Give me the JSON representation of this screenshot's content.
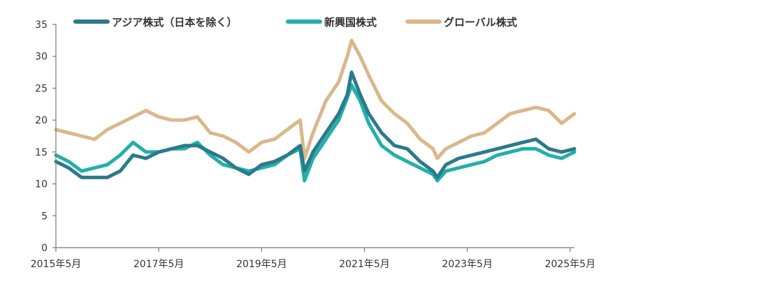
{
  "chart_data": {
    "type": "line",
    "title": "",
    "xlabel": "",
    "ylabel": "",
    "ylim": [
      0,
      35
    ],
    "yticks": [
      0,
      5,
      10,
      15,
      20,
      25,
      30,
      35
    ],
    "xlim": [
      "2015-05",
      "2025-06"
    ],
    "xticks": [
      "2015-05",
      "2017-05",
      "2019-05",
      "2021-05",
      "2023-05",
      "2025-05"
    ],
    "xtick_labels": [
      "2015年5月",
      "2017年5月",
      "2019年5月",
      "2021年5月",
      "2023年5月",
      "2025年5月"
    ],
    "grid": false,
    "legend_position": "top",
    "series": [
      {
        "name": "アジア株式（日本を除く）",
        "color": "#2b7a8c",
        "points": [
          [
            "2015-05",
            13.5
          ],
          [
            "2015-08",
            12.5
          ],
          [
            "2015-11",
            11.0
          ],
          [
            "2016-02",
            11.0
          ],
          [
            "2016-05",
            11.0
          ],
          [
            "2016-08",
            12.0
          ],
          [
            "2016-11",
            14.5
          ],
          [
            "2017-02",
            14.0
          ],
          [
            "2017-05",
            15.0
          ],
          [
            "2017-08",
            15.5
          ],
          [
            "2017-11",
            16.0
          ],
          [
            "2018-02",
            16.0
          ],
          [
            "2018-05",
            15.0
          ],
          [
            "2018-08",
            14.0
          ],
          [
            "2018-11",
            12.5
          ],
          [
            "2019-02",
            11.5
          ],
          [
            "2019-05",
            13.0
          ],
          [
            "2019-08",
            13.5
          ],
          [
            "2019-11",
            14.5
          ],
          [
            "2020-02",
            16.0
          ],
          [
            "2020-03",
            12.0
          ],
          [
            "2020-05",
            15.0
          ],
          [
            "2020-08",
            18.0
          ],
          [
            "2020-11",
            21.0
          ],
          [
            "2021-01",
            24.0
          ],
          [
            "2021-02",
            27.5
          ],
          [
            "2021-04",
            24.0
          ],
          [
            "2021-06",
            21.0
          ],
          [
            "2021-09",
            18.0
          ],
          [
            "2021-12",
            16.0
          ],
          [
            "2022-03",
            15.5
          ],
          [
            "2022-06",
            13.5
          ],
          [
            "2022-09",
            12.0
          ],
          [
            "2022-10",
            11.0
          ],
          [
            "2022-12",
            13.0
          ],
          [
            "2023-03",
            14.0
          ],
          [
            "2023-06",
            14.5
          ],
          [
            "2023-09",
            15.0
          ],
          [
            "2023-12",
            15.5
          ],
          [
            "2024-03",
            16.0
          ],
          [
            "2024-06",
            16.5
          ],
          [
            "2024-09",
            17.0
          ],
          [
            "2024-12",
            15.5
          ],
          [
            "2025-03",
            15.0
          ],
          [
            "2025-06",
            15.5
          ]
        ]
      },
      {
        "name": "新興国株式",
        "color": "#22b0a8",
        "points": [
          [
            "2015-05",
            14.5
          ],
          [
            "2015-08",
            13.5
          ],
          [
            "2015-11",
            12.0
          ],
          [
            "2016-02",
            12.5
          ],
          [
            "2016-05",
            13.0
          ],
          [
            "2016-08",
            14.5
          ],
          [
            "2016-11",
            16.5
          ],
          [
            "2017-02",
            15.0
          ],
          [
            "2017-05",
            15.0
          ],
          [
            "2017-08",
            15.5
          ],
          [
            "2017-11",
            15.5
          ],
          [
            "2018-02",
            16.5
          ],
          [
            "2018-05",
            14.5
          ],
          [
            "2018-08",
            13.0
          ],
          [
            "2018-11",
            12.5
          ],
          [
            "2019-02",
            12.0
          ],
          [
            "2019-05",
            12.5
          ],
          [
            "2019-08",
            13.0
          ],
          [
            "2019-11",
            14.5
          ],
          [
            "2020-02",
            15.5
          ],
          [
            "2020-03",
            10.5
          ],
          [
            "2020-05",
            14.0
          ],
          [
            "2020-08",
            17.0
          ],
          [
            "2020-11",
            20.0
          ],
          [
            "2021-01",
            23.5
          ],
          [
            "2021-02",
            25.5
          ],
          [
            "2021-04",
            23.0
          ],
          [
            "2021-06",
            19.5
          ],
          [
            "2021-09",
            16.0
          ],
          [
            "2021-12",
            14.5
          ],
          [
            "2022-03",
            13.5
          ],
          [
            "2022-06",
            12.5
          ],
          [
            "2022-09",
            11.5
          ],
          [
            "2022-10",
            10.5
          ],
          [
            "2022-12",
            12.0
          ],
          [
            "2023-03",
            12.5
          ],
          [
            "2023-06",
            13.0
          ],
          [
            "2023-09",
            13.5
          ],
          [
            "2023-12",
            14.5
          ],
          [
            "2024-03",
            15.0
          ],
          [
            "2024-06",
            15.5
          ],
          [
            "2024-09",
            15.5
          ],
          [
            "2024-12",
            14.5
          ],
          [
            "2025-03",
            14.0
          ],
          [
            "2025-06",
            15.0
          ]
        ]
      },
      {
        "name": "グローバル株式",
        "color": "#d9b88a",
        "points": [
          [
            "2015-05",
            18.5
          ],
          [
            "2015-08",
            18.0
          ],
          [
            "2015-11",
            17.5
          ],
          [
            "2016-02",
            17.0
          ],
          [
            "2016-05",
            18.5
          ],
          [
            "2016-08",
            19.5
          ],
          [
            "2016-11",
            20.5
          ],
          [
            "2017-02",
            21.5
          ],
          [
            "2017-05",
            20.5
          ],
          [
            "2017-08",
            20.0
          ],
          [
            "2017-11",
            20.0
          ],
          [
            "2018-02",
            20.5
          ],
          [
            "2018-05",
            18.0
          ],
          [
            "2018-08",
            17.5
          ],
          [
            "2018-11",
            16.5
          ],
          [
            "2019-02",
            15.0
          ],
          [
            "2019-05",
            16.5
          ],
          [
            "2019-08",
            17.0
          ],
          [
            "2019-11",
            18.5
          ],
          [
            "2020-02",
            20.0
          ],
          [
            "2020-03",
            14.0
          ],
          [
            "2020-05",
            18.0
          ],
          [
            "2020-08",
            23.0
          ],
          [
            "2020-11",
            26.0
          ],
          [
            "2021-01",
            30.0
          ],
          [
            "2021-02",
            32.5
          ],
          [
            "2021-04",
            30.0
          ],
          [
            "2021-06",
            27.0
          ],
          [
            "2021-09",
            23.0
          ],
          [
            "2021-12",
            21.0
          ],
          [
            "2022-03",
            19.5
          ],
          [
            "2022-06",
            17.0
          ],
          [
            "2022-09",
            15.5
          ],
          [
            "2022-10",
            14.0
          ],
          [
            "2022-12",
            15.5
          ],
          [
            "2023-03",
            16.5
          ],
          [
            "2023-06",
            17.5
          ],
          [
            "2023-09",
            18.0
          ],
          [
            "2023-12",
            19.5
          ],
          [
            "2024-03",
            21.0
          ],
          [
            "2024-06",
            21.5
          ],
          [
            "2024-09",
            22.0
          ],
          [
            "2024-12",
            21.5
          ],
          [
            "2025-03",
            19.5
          ],
          [
            "2025-06",
            21.0
          ]
        ]
      }
    ]
  }
}
